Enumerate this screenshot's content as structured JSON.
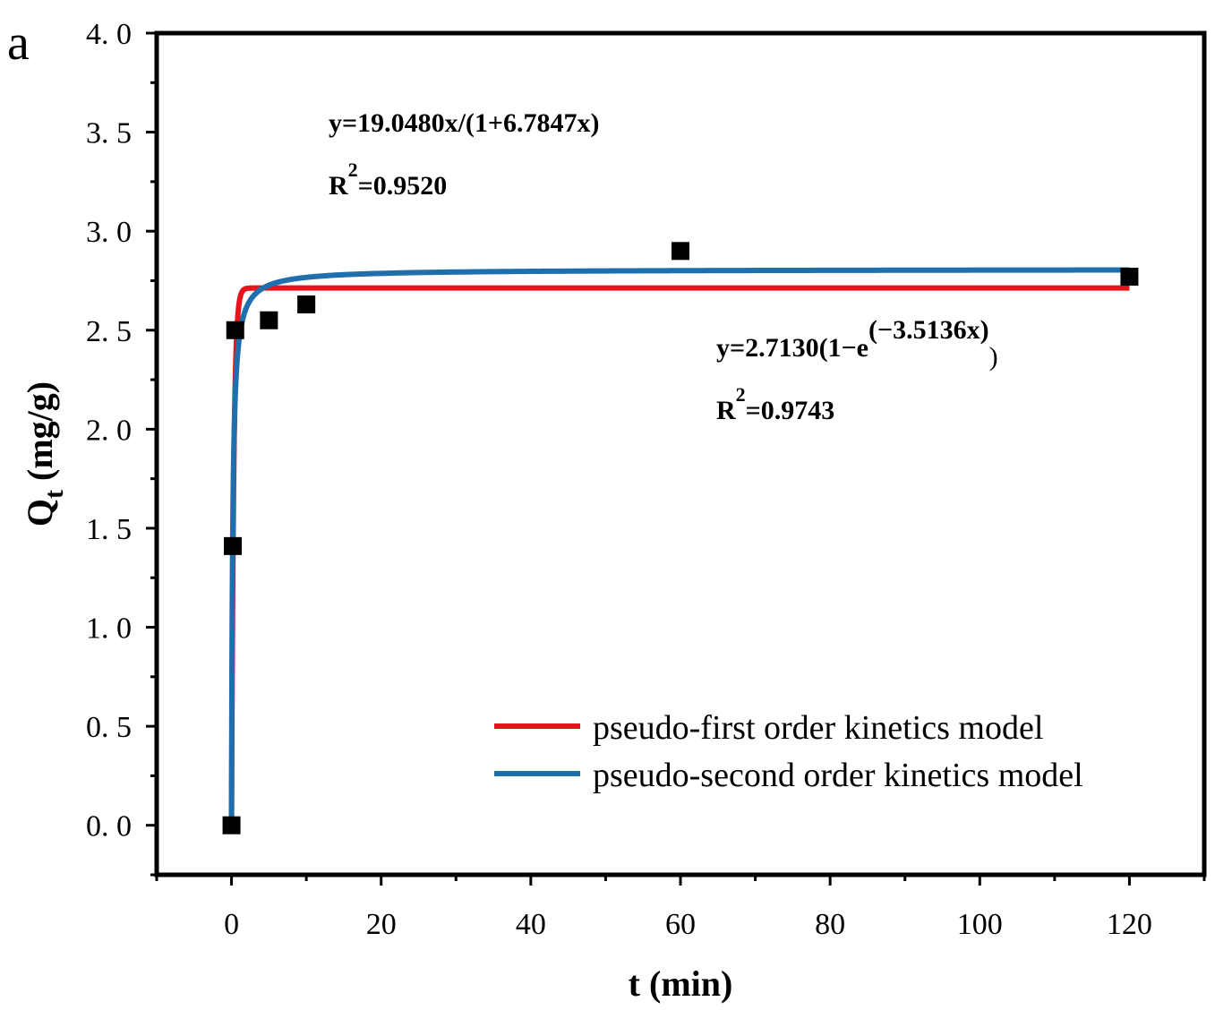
{
  "chart_data": {
    "type": "scatter",
    "panel_label": "a",
    "xlabel": "t (min)",
    "ylabel": {
      "main": "Q",
      "sub": "t",
      "rest": " (mg/g)"
    },
    "xlim": [
      -10,
      130
    ],
    "ylim": [
      -0.25,
      4.0
    ],
    "xticks": [
      0,
      20,
      40,
      60,
      80,
      100,
      120
    ],
    "xtick_labels": [
      "0",
      "20",
      "40",
      "60",
      "80",
      "100",
      "120"
    ],
    "yticks": [
      0,
      0.5,
      1.0,
      1.5,
      2.0,
      2.5,
      3.0,
      3.5,
      4.0
    ],
    "ytick_labels": [
      "0. 0",
      "0. 5",
      "1. 0",
      "1. 5",
      "2. 0",
      "2. 5",
      "3. 0",
      "3. 5",
      "4. 0"
    ],
    "series": [
      {
        "name": "pseudo-first order kinetics model",
        "kind": "line",
        "color": "#e8141b",
        "model": {
          "form": "first-order",
          "qe": 2.713,
          "k": 3.5136
        }
      },
      {
        "name": "pseudo-second order kinetics model",
        "kind": "line",
        "color": "#1f6fad",
        "model": {
          "form": "second-order",
          "a": 19.048,
          "b": 6.7847
        }
      },
      {
        "name": "",
        "kind": "scatter",
        "color": "#000000",
        "x": [
          0,
          0.17,
          0.5,
          5,
          10,
          60,
          120
        ],
        "y": [
          0.0,
          1.41,
          2.5,
          2.55,
          2.63,
          2.9,
          2.77
        ]
      }
    ],
    "annotations": {
      "second_order": {
        "equation": "y=19.0480x/(1+6.7847x)",
        "r2_prefix": "R",
        "r2_sup": "2",
        "r2_value": "=0.9520"
      },
      "first_order": {
        "equation_start": "y=2.7130(1−e",
        "equation_sup": "(−3.5136x)",
        "equation_end": ")",
        "r2_prefix": "R",
        "r2_sup": "2",
        "r2_value": "=0.9743"
      }
    },
    "legend": {
      "placement": "bottom-right",
      "entries": [
        "pseudo-first order kinetics model",
        "pseudo-second order kinetics model"
      ]
    },
    "grid": false
  }
}
